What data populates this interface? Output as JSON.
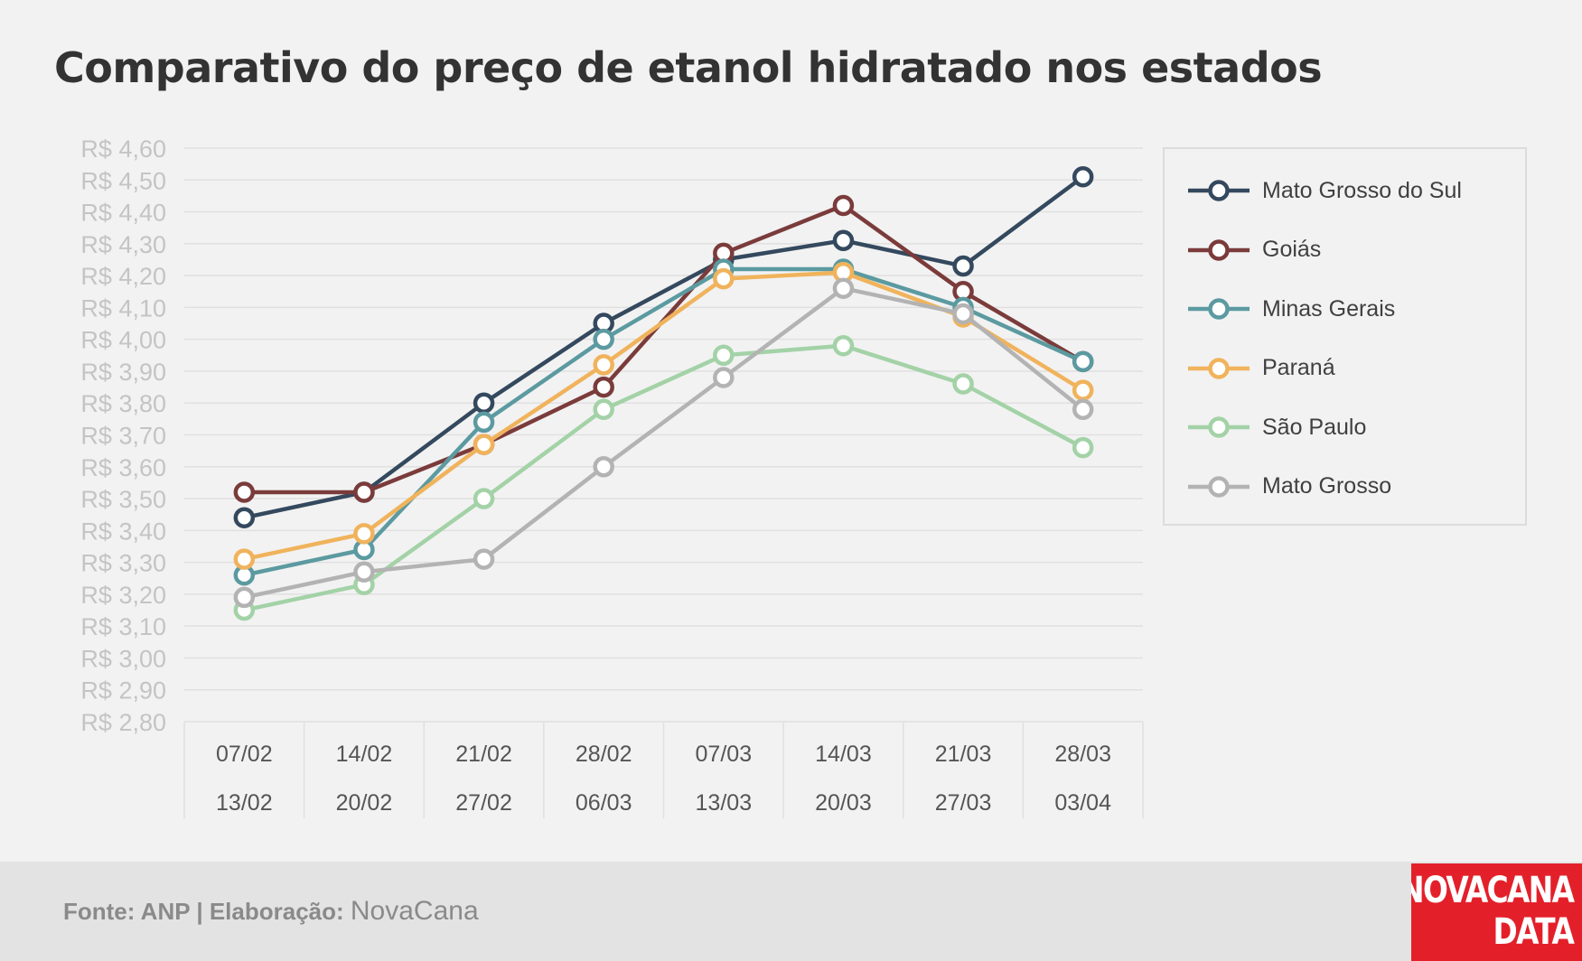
{
  "title": "Comparativo do preço de etanol hidratado nos estados",
  "footer": {
    "source": "Fonte: ANP | Elaboração: ",
    "brand": "NovaCana"
  },
  "logo": {
    "line1": "NOVACANA",
    "line2": "DATA",
    "color": "#e3202a"
  },
  "chart_data": {
    "type": "line",
    "title": "Comparativo do preço de etanol hidratado nos estados",
    "xlabel": "",
    "ylabel": "",
    "ylim": [
      2.8,
      4.6
    ],
    "ytick_step": 0.1,
    "y_tick_labels": [
      "R$ 2,80",
      "R$ 2,90",
      "R$ 3,00",
      "R$ 3,10",
      "R$ 3,20",
      "R$ 3,30",
      "R$ 3,40",
      "R$ 3,50",
      "R$ 3,60",
      "R$ 3,70",
      "R$ 3,80",
      "R$ 3,90",
      "R$ 4,00",
      "R$ 4,10",
      "R$ 4,20",
      "R$ 4,30",
      "R$ 4,40",
      "R$ 4,50",
      "R$ 4,60"
    ],
    "categories": [
      [
        "07/02",
        "13/02"
      ],
      [
        "14/02",
        "20/02"
      ],
      [
        "21/02",
        "27/02"
      ],
      [
        "28/02",
        "06/03"
      ],
      [
        "07/03",
        "13/03"
      ],
      [
        "14/03",
        "20/03"
      ],
      [
        "21/03",
        "27/03"
      ],
      [
        "28/03",
        "03/04"
      ]
    ],
    "grid": true,
    "legend_position": "right",
    "series": [
      {
        "name": "Mato Grosso do Sul",
        "color": "#34495e",
        "values": [
          3.44,
          3.52,
          3.8,
          4.05,
          4.25,
          4.31,
          4.23,
          4.51
        ]
      },
      {
        "name": "Goiás",
        "color": "#7b3b3b",
        "values": [
          3.52,
          3.52,
          3.67,
          3.85,
          4.27,
          4.42,
          4.15,
          3.93
        ]
      },
      {
        "name": "Minas Gerais",
        "color": "#5b9aa0",
        "values": [
          3.26,
          3.34,
          3.74,
          4.0,
          4.22,
          4.22,
          4.1,
          3.93
        ]
      },
      {
        "name": "Paraná",
        "color": "#f0b35c",
        "values": [
          3.31,
          3.39,
          3.67,
          3.92,
          4.19,
          4.21,
          4.07,
          3.84
        ]
      },
      {
        "name": "São Paulo",
        "color": "#a3d2a7",
        "values": [
          3.15,
          3.23,
          3.5,
          3.78,
          3.95,
          3.98,
          3.86,
          3.66
        ]
      },
      {
        "name": "Mato Grosso",
        "color": "#b3b3b3",
        "values": [
          3.19,
          3.27,
          3.31,
          3.6,
          3.88,
          4.16,
          4.08,
          3.78
        ]
      }
    ]
  }
}
